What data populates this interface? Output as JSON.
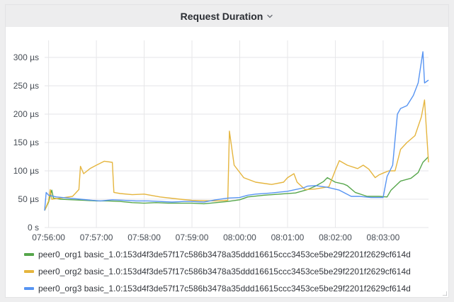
{
  "panel": {
    "title": "Request Duration"
  },
  "chart_data": {
    "type": "line",
    "title": "Request Duration",
    "xlabel": "",
    "ylabel": "",
    "x_ticks": [
      "07:56:00",
      "07:57:00",
      "07:58:00",
      "07:59:00",
      "08:00:00",
      "08:01:00",
      "08:02:00",
      "08:03:00"
    ],
    "y_ticks": [
      {
        "value": 0,
        "label": "0 s"
      },
      {
        "value": 50,
        "label": "50 µs"
      },
      {
        "value": 100,
        "label": "100 µs"
      },
      {
        "value": 150,
        "label": "150 µs"
      },
      {
        "value": 200,
        "label": "200 µs"
      },
      {
        "value": 250,
        "label": "250 µs"
      },
      {
        "value": 300,
        "label": "300 µs"
      }
    ],
    "xlim": [
      "07:55:55",
      "08:03:57"
    ],
    "ylim": [
      0,
      330
    ],
    "grid": true,
    "legend_position": "bottom",
    "series": [
      {
        "name": "peer0_org1 basic_1.0:153d4f3de57f17c586b3478a35ddd16615ccc3453ce5be29f2201f2629cf614d",
        "color": "#56a64b",
        "points": [
          [
            "07:55:55",
            30
          ],
          [
            "07:56:00",
            45
          ],
          [
            "07:56:04",
            66
          ],
          [
            "07:56:06",
            52
          ],
          [
            "07:56:15",
            50
          ],
          [
            "07:56:30",
            49
          ],
          [
            "07:56:45",
            48
          ],
          [
            "07:57:00",
            47
          ],
          [
            "07:57:15",
            47
          ],
          [
            "07:57:30",
            46
          ],
          [
            "07:57:45",
            44
          ],
          [
            "07:58:00",
            43
          ],
          [
            "07:58:15",
            44
          ],
          [
            "07:58:30",
            43
          ],
          [
            "07:58:45",
            43
          ],
          [
            "07:59:00",
            43
          ],
          [
            "07:59:15",
            42
          ],
          [
            "07:59:30",
            44
          ],
          [
            "07:59:45",
            46
          ],
          [
            "08:00:00",
            49
          ],
          [
            "08:00:10",
            54
          ],
          [
            "08:00:30",
            57
          ],
          [
            "08:00:50",
            59
          ],
          [
            "08:01:10",
            61
          ],
          [
            "08:01:25",
            67
          ],
          [
            "08:01:35",
            73
          ],
          [
            "08:01:45",
            81
          ],
          [
            "08:01:50",
            88
          ],
          [
            "08:02:00",
            80
          ],
          [
            "08:02:10",
            77
          ],
          [
            "08:02:15",
            74
          ],
          [
            "08:02:25",
            62
          ],
          [
            "08:02:40",
            55
          ],
          [
            "08:02:55",
            55
          ],
          [
            "08:03:05",
            54
          ],
          [
            "08:03:10",
            66
          ],
          [
            "08:03:22",
            82
          ],
          [
            "08:03:35",
            87
          ],
          [
            "08:03:44",
            97
          ],
          [
            "08:03:50",
            115
          ],
          [
            "08:03:57",
            125
          ]
        ]
      },
      {
        "name": "peer0_org2 basic_1.0:153d4f3de57f17c586b3478a35ddd16615ccc3453ce5be29f2201f2629cf614d",
        "color": "#e5b53e",
        "points": [
          [
            "07:55:55",
            30
          ],
          [
            "07:56:00",
            47
          ],
          [
            "07:56:02",
            67
          ],
          [
            "07:56:04",
            50
          ],
          [
            "07:56:15",
            52
          ],
          [
            "07:56:30",
            55
          ],
          [
            "07:56:38",
            67
          ],
          [
            "07:56:40",
            108
          ],
          [
            "07:56:44",
            95
          ],
          [
            "07:56:52",
            104
          ],
          [
            "07:57:00",
            110
          ],
          [
            "07:57:10",
            117
          ],
          [
            "07:57:20",
            115
          ],
          [
            "07:57:22",
            62
          ],
          [
            "07:57:30",
            60
          ],
          [
            "07:57:45",
            58
          ],
          [
            "07:58:00",
            59
          ],
          [
            "07:58:20",
            54
          ],
          [
            "07:58:45",
            50
          ],
          [
            "07:59:00",
            48
          ],
          [
            "07:59:30",
            47
          ],
          [
            "07:59:45",
            48
          ],
          [
            "07:59:47",
            170
          ],
          [
            "07:59:53",
            110
          ],
          [
            "08:00:05",
            88
          ],
          [
            "08:00:20",
            80
          ],
          [
            "08:00:40",
            76
          ],
          [
            "08:00:55",
            80
          ],
          [
            "08:01:00",
            88
          ],
          [
            "08:01:08",
            95
          ],
          [
            "08:01:12",
            80
          ],
          [
            "08:01:22",
            67
          ],
          [
            "08:01:35",
            68
          ],
          [
            "08:01:52",
            72
          ],
          [
            "08:02:00",
            101
          ],
          [
            "08:02:05",
            118
          ],
          [
            "08:02:15",
            110
          ],
          [
            "08:02:28",
            104
          ],
          [
            "08:02:35",
            110
          ],
          [
            "08:02:42",
            103
          ],
          [
            "08:02:50",
            88
          ],
          [
            "08:02:55",
            93
          ],
          [
            "08:03:00",
            96
          ],
          [
            "08:03:07",
            100
          ],
          [
            "08:03:15",
            100
          ],
          [
            "08:03:22",
            138
          ],
          [
            "08:03:30",
            150
          ],
          [
            "08:03:40",
            162
          ],
          [
            "08:03:48",
            195
          ],
          [
            "08:03:52",
            225
          ],
          [
            "08:03:57",
            115
          ]
        ]
      },
      {
        "name": "peer0_org3 basic_1.0:153d4f3de57f17c586b3478a35ddd16615ccc3453ce5be29f2201f2629cf614d",
        "color": "#5794f2",
        "points": [
          [
            "07:55:55",
            30
          ],
          [
            "07:55:57",
            62
          ],
          [
            "07:56:00",
            57
          ],
          [
            "07:56:10",
            54
          ],
          [
            "07:56:25",
            52
          ],
          [
            "07:56:40",
            50
          ],
          [
            "07:56:55",
            48
          ],
          [
            "07:57:05",
            47
          ],
          [
            "07:57:20",
            49
          ],
          [
            "07:57:35",
            48
          ],
          [
            "07:57:50",
            47
          ],
          [
            "07:58:05",
            47
          ],
          [
            "07:58:20",
            46
          ],
          [
            "07:58:35",
            45
          ],
          [
            "07:58:50",
            46
          ],
          [
            "07:59:00",
            46
          ],
          [
            "07:59:15",
            45
          ],
          [
            "07:59:30",
            49
          ],
          [
            "07:59:45",
            52
          ],
          [
            "08:00:00",
            53
          ],
          [
            "08:00:10",
            57
          ],
          [
            "08:00:20",
            59
          ],
          [
            "08:00:40",
            61
          ],
          [
            "08:01:00",
            64
          ],
          [
            "08:01:20",
            70
          ],
          [
            "08:01:25",
            73
          ],
          [
            "08:01:35",
            74
          ],
          [
            "08:01:50",
            71
          ],
          [
            "08:02:05",
            66
          ],
          [
            "08:02:20",
            55
          ],
          [
            "08:02:30",
            55
          ],
          [
            "08:02:45",
            53
          ],
          [
            "08:03:00",
            53
          ],
          [
            "08:03:05",
            90
          ],
          [
            "08:03:12",
            110
          ],
          [
            "08:03:18",
            200
          ],
          [
            "08:03:22",
            210
          ],
          [
            "08:03:30",
            215
          ],
          [
            "08:03:38",
            233
          ],
          [
            "08:03:44",
            255
          ],
          [
            "08:03:50",
            310
          ],
          [
            "08:03:52",
            255
          ],
          [
            "08:03:57",
            260
          ]
        ]
      }
    ]
  }
}
